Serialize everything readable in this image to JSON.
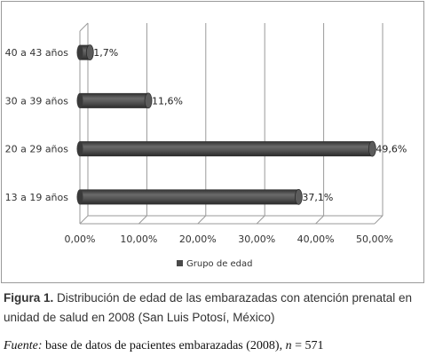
{
  "chart_data": {
    "type": "bar",
    "orientation": "horizontal",
    "categories": [
      "13 a 19 años",
      "20 a 29 años",
      "30 a 39 años",
      "40 a 43 años"
    ],
    "series": [
      {
        "name": "Grupo de edad",
        "values": [
          37.1,
          49.6,
          11.6,
          1.7
        ]
      }
    ],
    "data_labels": [
      "37,1%",
      "49,6%",
      "11,6%",
      "1,7%"
    ],
    "xlim": [
      0,
      50
    ],
    "xticks": [
      0,
      10,
      20,
      30,
      40,
      50
    ],
    "xtick_labels": [
      "0,00%",
      "10,00%",
      "20,00%",
      "30,00%",
      "40,00%",
      "50,00%"
    ],
    "grid": "vertical",
    "legend_position": "bottom",
    "style": "3d-cylinder",
    "colors": {
      "bar": "#4a4a4a",
      "grid": "#9a9a9a"
    }
  },
  "caption": {
    "label": "Figura 1.",
    "text": "Distribución de edad de las embarazadas con atención prenatal en unidad de salud en 2008 (San Luis Potosí, México)"
  },
  "source": {
    "label": "Fuente:",
    "text": "base de datos de pacientes embarazadas (2008),",
    "n_var": "n",
    "n_text": " = 571"
  }
}
